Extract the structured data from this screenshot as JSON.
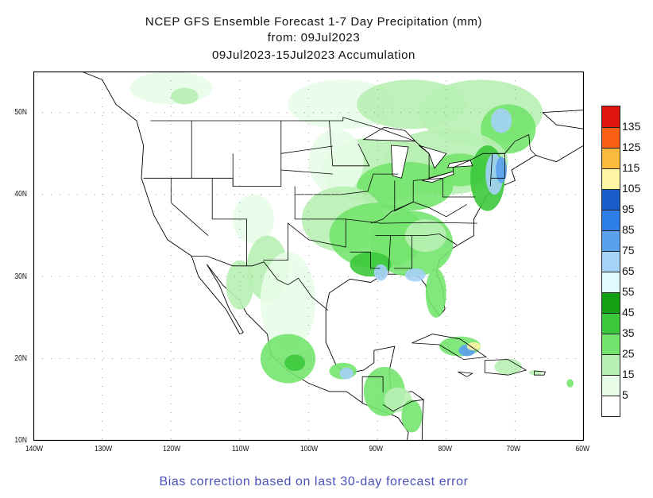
{
  "title": {
    "line1": "NCEP GFS Ensemble Forecast 1-7 Day Precipitation (mm)",
    "line2": "from: 09Jul2023",
    "line3": "09Jul2023-15Jul2023 Accumulation"
  },
  "map": {
    "region": "North America / Caribbean",
    "lon_labels": [
      "140W",
      "130W",
      "120W",
      "110W",
      "100W",
      "90W",
      "80W",
      "70W",
      "60W"
    ],
    "lat_labels": [
      "50N",
      "40N",
      "30N",
      "20N",
      "10N"
    ],
    "grid": "dotted",
    "land_color": "#ffffff",
    "boundary_color": "#000000"
  },
  "legend": {
    "labels": [
      "135",
      "125",
      "115",
      "105",
      "95",
      "85",
      "75",
      "65",
      "55",
      "45",
      "35",
      "25",
      "15",
      "5"
    ],
    "colors": [
      "#e0140e",
      "#fa6014",
      "#fcba3e",
      "#fff5a5",
      "#1a5cc8",
      "#2e7ee8",
      "#5aa0ec",
      "#a4d2f8",
      "#e0fbff",
      "#14a014",
      "#3cc83c",
      "#74e46e",
      "#b8f0b4",
      "#e8fde8",
      "#ffffff"
    ]
  },
  "footer": "Bias correction based on last 30-day forecast error"
}
